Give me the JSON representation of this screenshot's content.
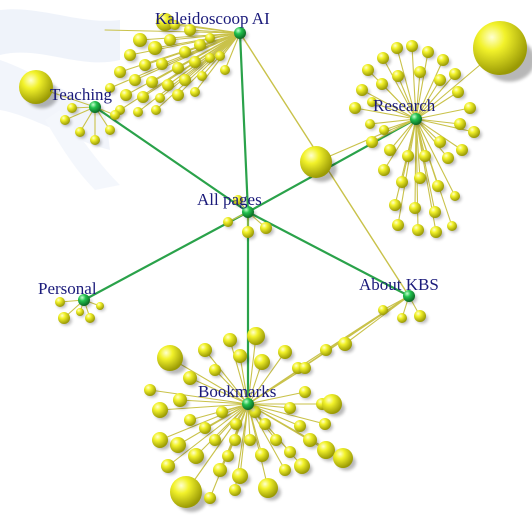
{
  "graph": {
    "colors": {
      "background": "#ffffff",
      "hub": "#1fb84a",
      "leaf": "#e6e619",
      "edge_hub": "#2aa24a",
      "edge_leaf": "#c9c24a",
      "label": "#1a1a7a"
    },
    "nodes": {
      "all_pages": {
        "label": "All pages"
      },
      "kaleidoscoop": {
        "label": "Kaleidoscoop AI"
      },
      "teaching": {
        "label": "Teaching"
      },
      "research": {
        "label": "Research"
      },
      "personal": {
        "label": "Personal"
      },
      "about_kbs": {
        "label": "About KBS"
      },
      "bookmarks": {
        "label": "Bookmarks"
      }
    }
  }
}
